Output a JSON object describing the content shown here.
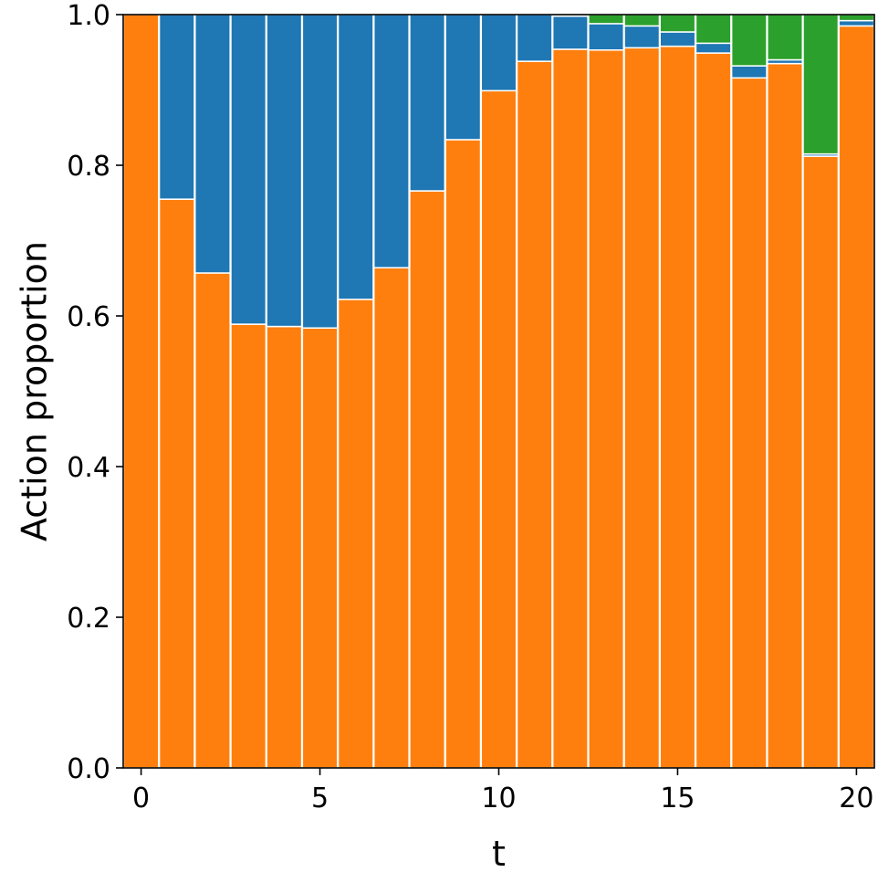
{
  "chart_data": {
    "type": "bar",
    "stacked": true,
    "title": "",
    "xlabel": "t",
    "ylabel": "Action proportion",
    "x": [
      0,
      1,
      2,
      3,
      4,
      5,
      6,
      7,
      8,
      9,
      10,
      11,
      12,
      13,
      14,
      15,
      16,
      17,
      18,
      19,
      20
    ],
    "xlim": [
      -0.5,
      20.5
    ],
    "ylim": [
      0.0,
      1.0
    ],
    "xticks": [
      "0",
      "5",
      "10",
      "15",
      "20"
    ],
    "xtick_values": [
      0,
      5,
      10,
      15,
      20
    ],
    "yticks": [
      "0.0",
      "0.2",
      "0.4",
      "0.6",
      "0.8",
      "1.0"
    ],
    "ytick_values": [
      0.0,
      0.2,
      0.4,
      0.6,
      0.8,
      1.0
    ],
    "grid": false,
    "legend": false,
    "series": [
      {
        "color": "#ff7f0e",
        "values": [
          1.0,
          0.755,
          0.657,
          0.589,
          0.586,
          0.584,
          0.622,
          0.664,
          0.766,
          0.834,
          0.899,
          0.938,
          0.954,
          0.953,
          0.956,
          0.958,
          0.949,
          0.916,
          0.935,
          0.812,
          0.985
        ]
      },
      {
        "color": "#1f77b4",
        "values": [
          0.0,
          0.245,
          0.343,
          0.411,
          0.414,
          0.416,
          0.378,
          0.336,
          0.234,
          0.166,
          0.101,
          0.062,
          0.044,
          0.035,
          0.029,
          0.019,
          0.013,
          0.016,
          0.005,
          0.003,
          0.007
        ]
      },
      {
        "color": "#2ca02c",
        "values": [
          0.0,
          0.0,
          0.0,
          0.0,
          0.0,
          0.0,
          0.0,
          0.0,
          0.0,
          0.0,
          0.0,
          0.0,
          0.002,
          0.012,
          0.015,
          0.023,
          0.038,
          0.068,
          0.06,
          0.185,
          0.008
        ]
      }
    ]
  }
}
